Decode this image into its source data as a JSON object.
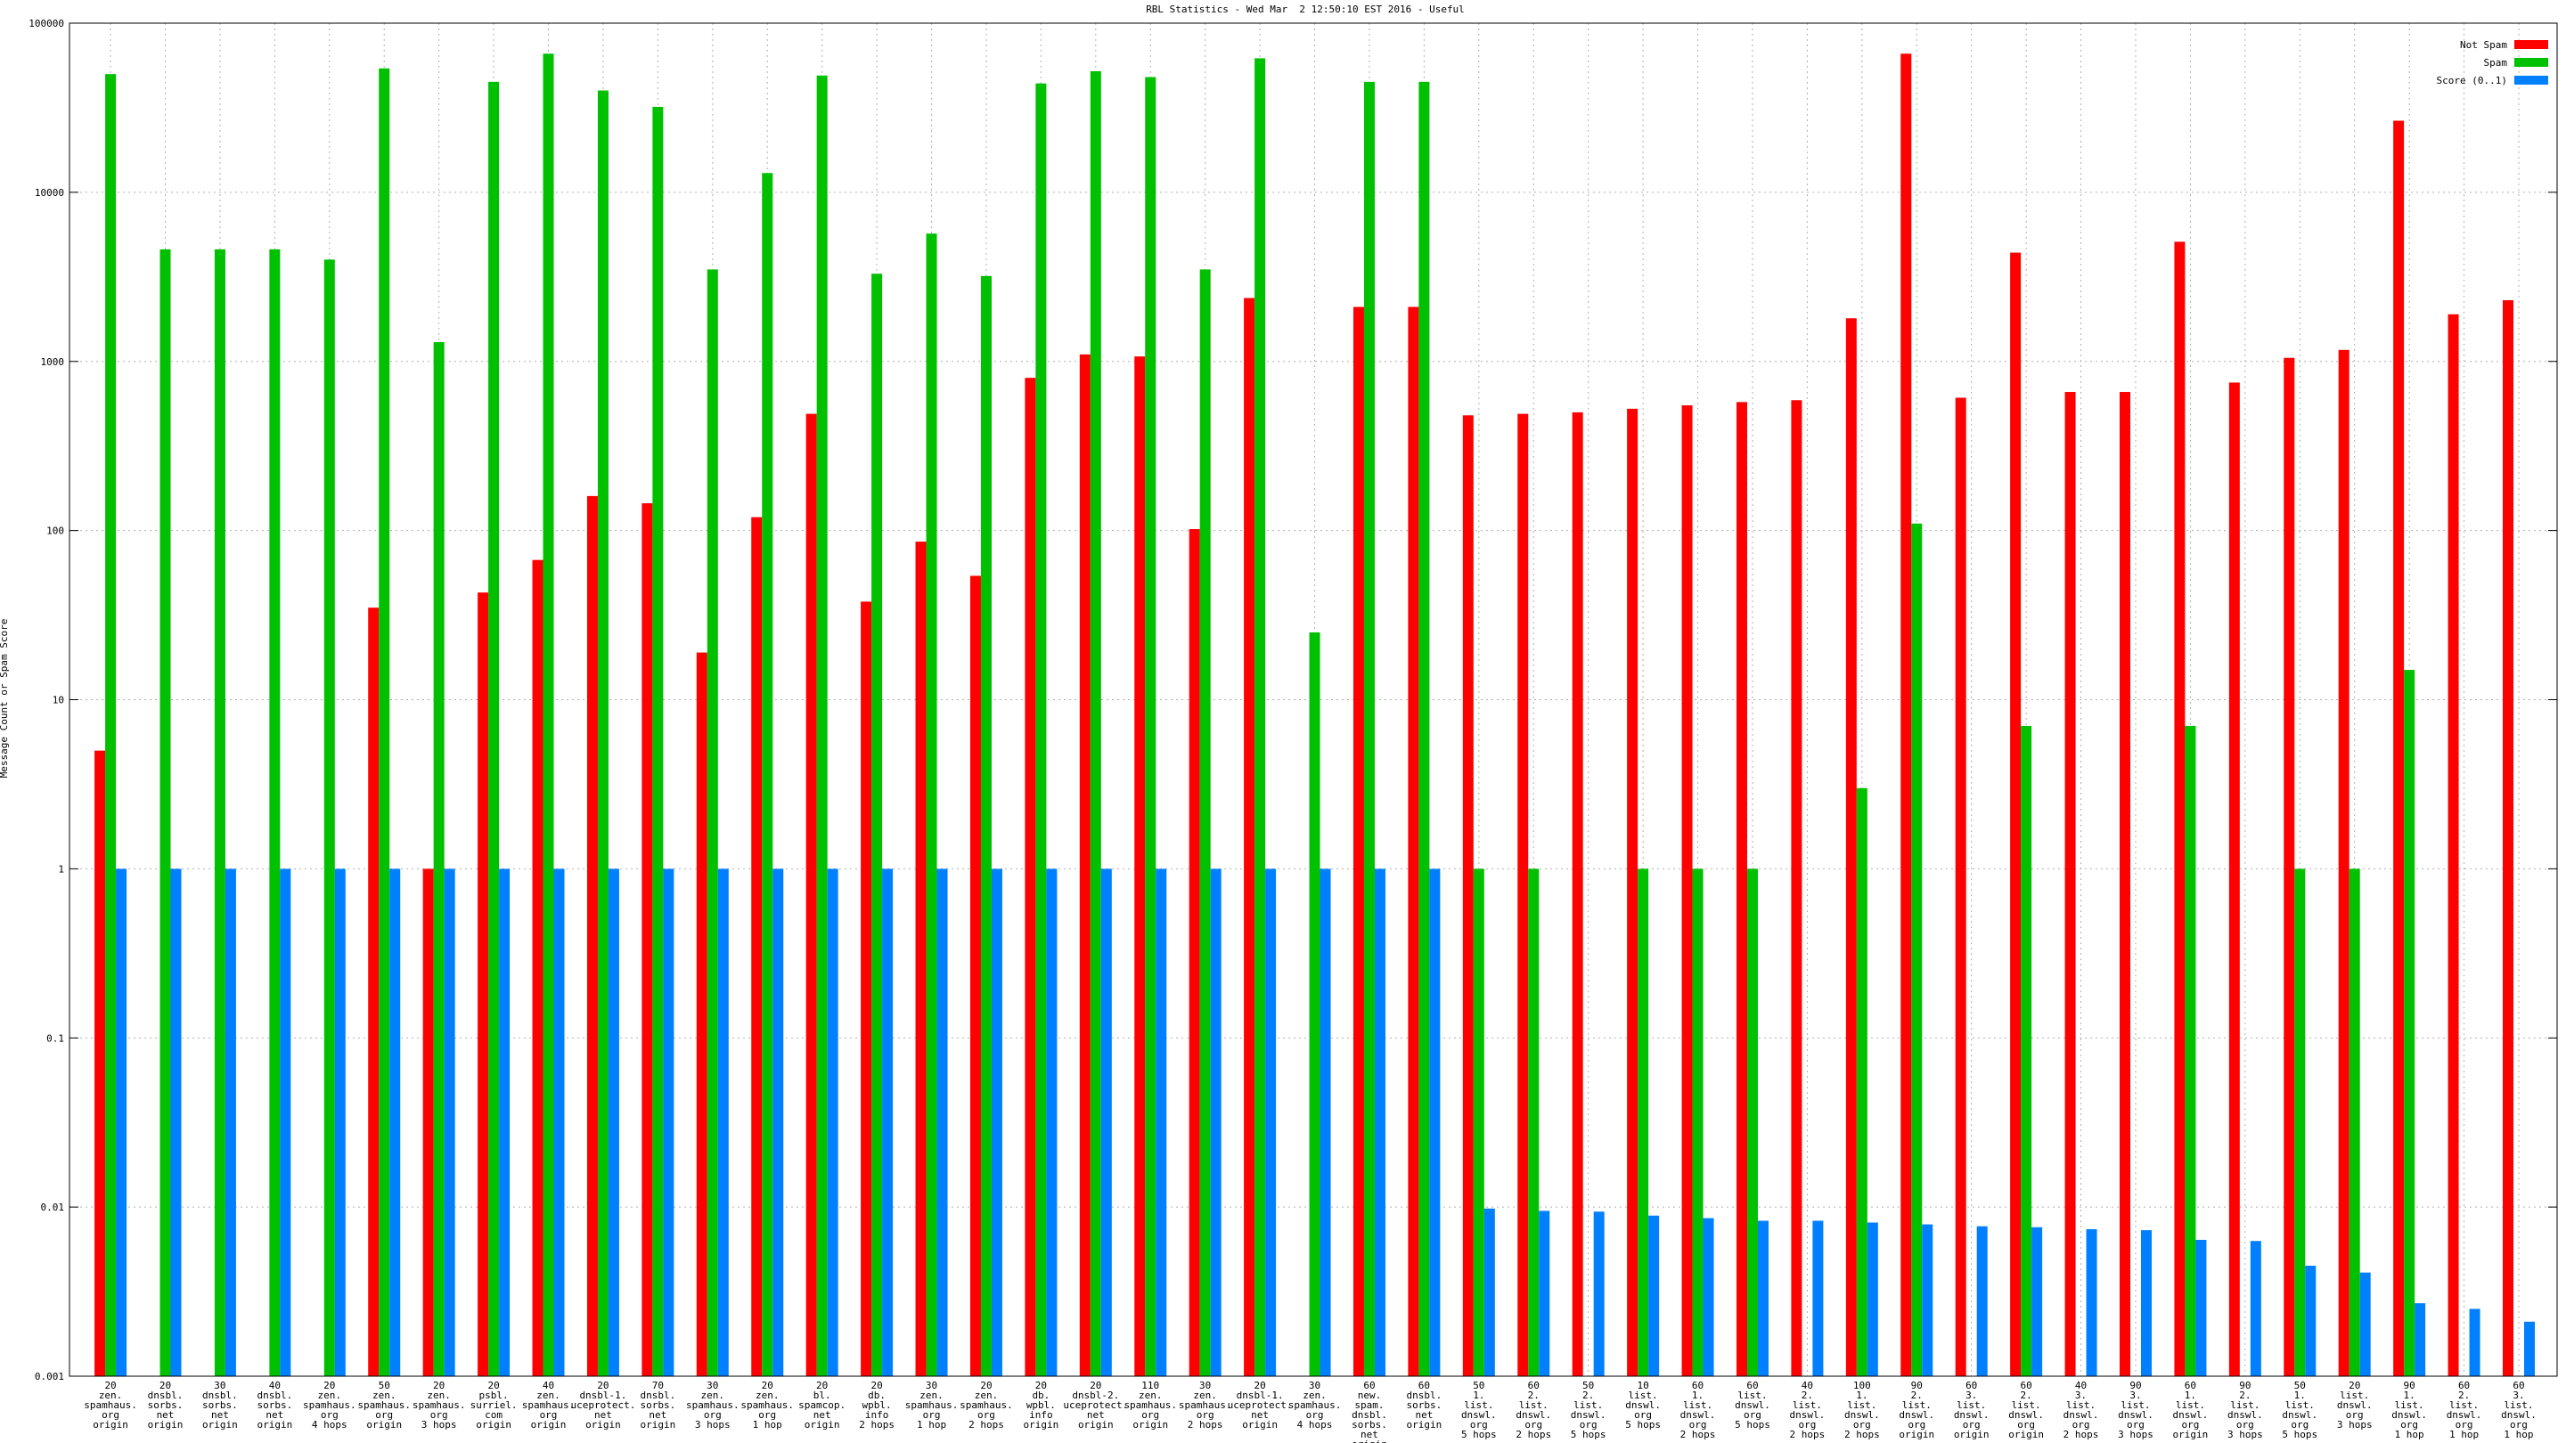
{
  "chart_data": {
    "type": "bar",
    "title": "RBL Statistics - Wed Mar  2 12:50:10 EST 2016 - Useful",
    "y_label": "Message Count or Spam Score",
    "categories": [
      [
        "20",
        "zen.",
        "spamhaus.",
        "org",
        "origin"
      ],
      [
        "20",
        "dnsbl.",
        "sorbs.",
        "net",
        "origin"
      ],
      [
        "30",
        "dnsbl.",
        "sorbs.",
        "net",
        "origin"
      ],
      [
        "40",
        "dnsbl.",
        "sorbs.",
        "net",
        "origin"
      ],
      [
        "20",
        "zen.",
        "spamhaus.",
        "org",
        "4 hops"
      ],
      [
        "50",
        "zen.",
        "spamhaus.",
        "org",
        "origin"
      ],
      [
        "20",
        "zen.",
        "spamhaus.",
        "org",
        "3 hops"
      ],
      [
        "20",
        "psbl.",
        "surriel.",
        "com",
        "origin"
      ],
      [
        "40",
        "zen.",
        "spamhaus.",
        "org",
        "origin"
      ],
      [
        "20",
        "dnsbl-1.",
        "uceprotect.",
        "net",
        "origin"
      ],
      [
        "70",
        "dnsbl.",
        "sorbs.",
        "net",
        "origin"
      ],
      [
        "30",
        "zen.",
        "spamhaus.",
        "org",
        "3 hops"
      ],
      [
        "20",
        "zen.",
        "spamhaus.",
        "org",
        "1 hop"
      ],
      [
        "20",
        "bl.",
        "spamcop.",
        "net",
        "origin"
      ],
      [
        "20",
        "db.",
        "wpbl.",
        "info",
        "2 hops"
      ],
      [
        "30",
        "zen.",
        "spamhaus.",
        "org",
        "1 hop"
      ],
      [
        "20",
        "zen.",
        "spamhaus.",
        "org",
        "2 hops"
      ],
      [
        "20",
        "db.",
        "wpbl.",
        "info",
        "origin"
      ],
      [
        "20",
        "dnsbl-2.",
        "uceprotect.",
        "net",
        "origin"
      ],
      [
        "110",
        "zen.",
        "spamhaus.",
        "org",
        "origin"
      ],
      [
        "30",
        "zen.",
        "spamhaus.",
        "org",
        "2 hops"
      ],
      [
        "20",
        "dnsbl-1.",
        "uceprotect.",
        "net",
        "origin"
      ],
      [
        "30",
        "zen.",
        "spamhaus.",
        "org",
        "4 hops"
      ],
      [
        "60",
        "new.",
        "spam.",
        "dnsbl.",
        "sorbs.",
        "net",
        "origin"
      ],
      [
        "60",
        "dnsbl.",
        "sorbs.",
        "net",
        "origin"
      ],
      [
        "50",
        "1.",
        "list.",
        "dnswl.",
        "org",
        "5 hops"
      ],
      [
        "60",
        "2.",
        "list.",
        "dnswl.",
        "org",
        "2 hops"
      ],
      [
        "50",
        "2.",
        "list.",
        "dnswl.",
        "org",
        "5 hops"
      ],
      [
        "10",
        "list.",
        "dnswl.",
        "org",
        "5 hops"
      ],
      [
        "60",
        "1.",
        "list.",
        "dnswl.",
        "org",
        "2 hops"
      ],
      [
        "60",
        "list.",
        "dnswl.",
        "org",
        "5 hops"
      ],
      [
        "40",
        "2.",
        "list.",
        "dnswl.",
        "org",
        "2 hops"
      ],
      [
        "100",
        "1.",
        "list.",
        "dnswl.",
        "org",
        "2 hops"
      ],
      [
        "90",
        "2.",
        "list.",
        "dnswl.",
        "org",
        "origin"
      ],
      [
        "60",
        "3.",
        "list.",
        "dnswl.",
        "org",
        "origin"
      ],
      [
        "60",
        "2.",
        "list.",
        "dnswl.",
        "org",
        "origin"
      ],
      [
        "40",
        "3.",
        "list.",
        "dnswl.",
        "org",
        "2 hops"
      ],
      [
        "90",
        "3.",
        "list.",
        "dnswl.",
        "org",
        "3 hops"
      ],
      [
        "60",
        "1.",
        "list.",
        "dnswl.",
        "org",
        "origin"
      ],
      [
        "90",
        "2.",
        "list.",
        "dnswl.",
        "org",
        "3 hops"
      ],
      [
        "50",
        "1.",
        "list.",
        "dnswl.",
        "org",
        "5 hops"
      ],
      [
        "20",
        "list.",
        "dnswl.",
        "org",
        "3 hops"
      ],
      [
        "90",
        "1.",
        "list.",
        "dnswl.",
        "org",
        "1 hop"
      ],
      [
        "60",
        "2.",
        "list.",
        "dnswl.",
        "org",
        "1 hop"
      ],
      [
        "60",
        "3.",
        "list.",
        "dnswl.",
        "org",
        "1 hop"
      ]
    ],
    "series": [
      {
        "name": "Not Spam",
        "color": "#ff0000",
        "values": [
          5,
          null,
          null,
          null,
          null,
          35,
          1,
          43,
          67,
          160,
          145,
          19,
          120,
          490,
          38,
          86,
          54,
          800,
          1100,
          1070,
          102,
          2370,
          null,
          2100,
          2100,
          480,
          490,
          500,
          525,
          550,
          575,
          590,
          1800,
          66000,
          610,
          4400,
          660,
          660,
          5100,
          750,
          1050,
          1170,
          26500,
          1900,
          2300
        ]
      },
      {
        "name": "Spam",
        "color": "#00c000",
        "values": [
          50000,
          4600,
          4600,
          4600,
          4000,
          54000,
          1300,
          45000,
          66000,
          40000,
          32000,
          3500,
          13000,
          49000,
          3300,
          5700,
          3200,
          44000,
          52000,
          48000,
          3500,
          62000,
          25,
          45000,
          45000,
          1,
          1,
          null,
          1,
          1,
          1,
          null,
          3,
          110,
          null,
          7,
          null,
          null,
          7,
          null,
          1,
          1,
          15,
          null,
          null
        ]
      },
      {
        "name": "Score (0..1)",
        "color": "#0080ff",
        "values": [
          1,
          1,
          1,
          1,
          1,
          1,
          1,
          1,
          1,
          1,
          1,
          1,
          1,
          1,
          1,
          1,
          1,
          1,
          1,
          1,
          1,
          1,
          1,
          1,
          1,
          0.0098,
          0.0095,
          0.0094,
          0.0089,
          0.0086,
          0.0083,
          0.0083,
          0.0081,
          0.0079,
          0.0077,
          0.0076,
          0.0074,
          0.0073,
          0.0064,
          0.0063,
          0.0045,
          0.0041,
          0.0027,
          0.0025,
          0.0021
        ]
      }
    ],
    "ylim": [
      0.001,
      100000
    ],
    "yticks": [
      0.001,
      0.01,
      0.1,
      1,
      10,
      100,
      1000,
      10000,
      100000
    ],
    "log_scale": true,
    "grid": true,
    "legend": "top right"
  }
}
